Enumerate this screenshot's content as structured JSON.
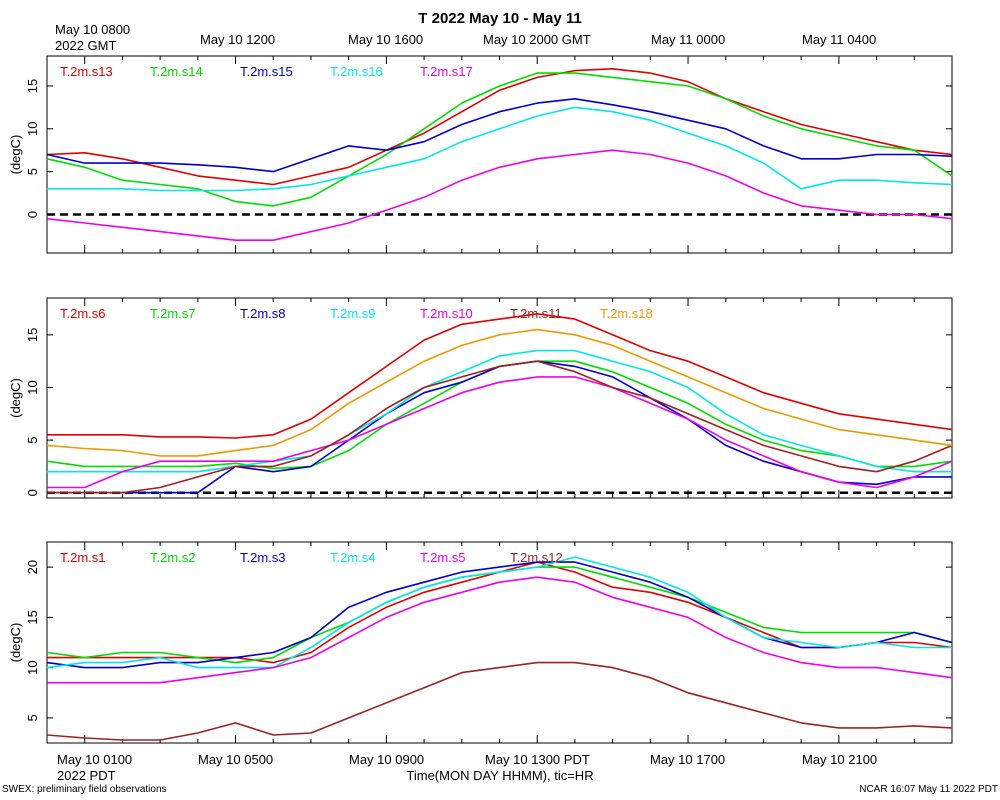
{
  "title": "T 2022 May 10 - May 11",
  "gmt_axis": {
    "first_label_line1": "May 10 0800",
    "first_label_line2": "2022 GMT",
    "labels": [
      "May 10 1200",
      "May 10 1600",
      "May 10 2000 GMT",
      "May 11 0000",
      "May 11 0400"
    ]
  },
  "pdt_axis": {
    "labels": [
      "May 10 0100",
      "May 10 0500",
      "May 10 0900",
      "May 10 1300 PDT",
      "May 10 1700",
      "May 10 2100"
    ],
    "year_label": "2022 PDT",
    "xlabel": "Time(MON DAY HHMM), tic=HR"
  },
  "footer": {
    "left": "SWEX: preliminary field observations",
    "right": "NCAR 16:07 May 11 2022 PDT"
  },
  "colors": {
    "red": "#e00000",
    "green": "#00dd00",
    "blue": "#0000cc",
    "cyan": "#00e8e8",
    "magenta": "#ee00ee",
    "brown": "#a02020",
    "orange": "#ee9900"
  },
  "chart_data": [
    {
      "type": "line",
      "ylabel": "(degC)",
      "ylim": [
        -4.5,
        18.5
      ],
      "yticks": [
        0,
        5,
        10,
        15
      ],
      "x_unit": "hours from May 10 0000 PDT",
      "xlim": [
        0,
        24
      ],
      "zero_line": true,
      "series": [
        {
          "name": "T.2m.s13",
          "color": "#e00000",
          "x": [
            0,
            1,
            2,
            3,
            4,
            5,
            6,
            7,
            8,
            9,
            10,
            11,
            12,
            13,
            14,
            15,
            16,
            17,
            18,
            19,
            20,
            21,
            22,
            23,
            24
          ],
          "values": [
            7,
            7.2,
            6.5,
            5.5,
            4.5,
            4,
            3.5,
            4.5,
            5.5,
            7.5,
            9.5,
            12,
            14.5,
            16,
            16.8,
            17,
            16.5,
            15.5,
            13.5,
            12,
            10.5,
            9.5,
            8.5,
            7.5,
            7
          ]
        },
        {
          "name": "T.2m.s14",
          "color": "#00dd00",
          "x": [
            0,
            1,
            2,
            3,
            4,
            5,
            6,
            7,
            8,
            9,
            10,
            11,
            12,
            13,
            14,
            15,
            16,
            17,
            18,
            19,
            20,
            21,
            22,
            23,
            24
          ],
          "values": [
            6.5,
            5.5,
            4,
            3.5,
            3,
            1.5,
            1,
            2,
            4.5,
            7,
            10,
            13,
            15,
            16.5,
            16.5,
            16,
            15.5,
            15,
            13.5,
            11.5,
            10,
            9,
            8,
            7.5,
            4.5
          ]
        },
        {
          "name": "T.2m.s15",
          "color": "#0000cc",
          "x": [
            0,
            1,
            2,
            3,
            4,
            5,
            6,
            7,
            8,
            9,
            10,
            11,
            12,
            13,
            14,
            15,
            16,
            17,
            18,
            19,
            20,
            21,
            22,
            23,
            24
          ],
          "values": [
            7,
            6,
            6,
            6,
            5.8,
            5.5,
            5,
            6.5,
            8,
            7.5,
            8.5,
            10.5,
            12,
            13,
            13.5,
            12.8,
            12,
            11,
            10,
            8,
            6.5,
            6.5,
            7,
            7,
            6.8
          ]
        },
        {
          "name": "T.2m.s16",
          "color": "#00e8e8",
          "x": [
            0,
            1,
            2,
            3,
            4,
            5,
            6,
            7,
            8,
            9,
            10,
            11,
            12,
            13,
            14,
            15,
            16,
            17,
            18,
            19,
            20,
            21,
            22,
            23,
            24
          ],
          "values": [
            3,
            3,
            3,
            2.8,
            2.8,
            2.8,
            3,
            3.5,
            4.5,
            5.5,
            6.5,
            8.5,
            10,
            11.5,
            12.5,
            12,
            11,
            9.5,
            8,
            6,
            3,
            4,
            4,
            3.7,
            3.5
          ]
        },
        {
          "name": "T.2m.s17",
          "color": "#ee00ee",
          "x": [
            0,
            1,
            2,
            3,
            4,
            5,
            6,
            7,
            8,
            9,
            10,
            11,
            12,
            13,
            14,
            15,
            16,
            17,
            18,
            19,
            20,
            21,
            22,
            23,
            24
          ],
          "values": [
            -0.5,
            -1,
            -1.5,
            -2,
            -2.5,
            -3,
            -3,
            -2,
            -1,
            0.5,
            2,
            4,
            5.5,
            6.5,
            7,
            7.5,
            7,
            6,
            4.5,
            2.5,
            1,
            0.5,
            0,
            0,
            -0.5
          ]
        }
      ]
    },
    {
      "type": "line",
      "ylabel": "(degC)",
      "ylim": [
        -0.5,
        18.5
      ],
      "yticks": [
        0,
        5,
        10,
        15
      ],
      "x_unit": "hours from May 10 0000 PDT",
      "xlim": [
        0,
        24
      ],
      "zero_line": true,
      "series": [
        {
          "name": "T.2m.s6",
          "color": "#e00000",
          "x": [
            0,
            1,
            2,
            3,
            4,
            5,
            6,
            7,
            8,
            9,
            10,
            11,
            12,
            13,
            14,
            15,
            16,
            17,
            18,
            19,
            20,
            21,
            22,
            23,
            24
          ],
          "values": [
            5.5,
            5.5,
            5.5,
            5.3,
            5.3,
            5.2,
            5.5,
            7,
            9.5,
            12,
            14.5,
            16,
            16.5,
            17,
            16.5,
            15,
            13.5,
            12.5,
            11,
            9.5,
            8.5,
            7.5,
            7,
            6.5,
            6
          ]
        },
        {
          "name": "T.2m.s7",
          "color": "#00dd00",
          "x": [
            0,
            1,
            2,
            3,
            4,
            5,
            6,
            7,
            8,
            9,
            10,
            11,
            12,
            13,
            14,
            15,
            16,
            17,
            18,
            19,
            20,
            21,
            22,
            23,
            24
          ],
          "values": [
            3,
            2.5,
            2.5,
            2.5,
            2.5,
            2.8,
            2.3,
            2.5,
            4,
            6.5,
            8.5,
            10.5,
            12,
            12.5,
            12.5,
            11.5,
            10,
            8.5,
            6.5,
            5,
            4,
            3.5,
            2.5,
            2.5,
            3
          ]
        },
        {
          "name": "T.2m.s8",
          "color": "#0000cc",
          "x": [
            0,
            1,
            2,
            3,
            4,
            5,
            6,
            7,
            8,
            9,
            10,
            11,
            12,
            13,
            14,
            15,
            16,
            17,
            18,
            19,
            20,
            21,
            22,
            23,
            24
          ],
          "values": [
            0,
            0,
            0,
            0,
            0,
            2.5,
            2,
            2.5,
            5,
            7.5,
            9.5,
            10.5,
            12,
            12.5,
            12,
            11,
            9,
            7,
            4.5,
            3,
            2,
            1,
            0.8,
            1.5,
            1.5
          ]
        },
        {
          "name": "T.2m.s9",
          "color": "#00e8e8",
          "x": [
            0,
            1,
            2,
            3,
            4,
            5,
            6,
            7,
            8,
            9,
            10,
            11,
            12,
            13,
            14,
            15,
            16,
            17,
            18,
            19,
            20,
            21,
            22,
            23,
            24
          ],
          "values": [
            2,
            2,
            2,
            2,
            2,
            2.5,
            3,
            3.5,
            5.5,
            7.5,
            10,
            11.5,
            13,
            13.5,
            13.5,
            12.5,
            11.5,
            10,
            7.5,
            5.5,
            4.5,
            3.5,
            2.5,
            2,
            2
          ]
        },
        {
          "name": "T.2m.s10",
          "color": "#ee00ee",
          "x": [
            0,
            1,
            2,
            3,
            4,
            5,
            6,
            7,
            8,
            9,
            10,
            11,
            12,
            13,
            14,
            15,
            16,
            17,
            18,
            19,
            20,
            21,
            22,
            23,
            24
          ],
          "values": [
            0.5,
            0.5,
            2,
            3,
            3,
            3,
            3,
            4,
            5,
            6.5,
            8,
            9.5,
            10.5,
            11,
            11,
            10,
            8.5,
            7,
            5,
            3.5,
            2,
            1,
            0.5,
            1.5,
            3
          ]
        },
        {
          "name": "T.2m.s11",
          "color": "#a02020",
          "x": [
            0,
            1,
            2,
            3,
            4,
            5,
            6,
            7,
            8,
            9,
            10,
            11,
            12,
            13,
            14,
            15,
            16,
            17,
            18,
            19,
            20,
            21,
            22,
            23,
            24
          ],
          "values": [
            0,
            0,
            0,
            0.5,
            1.5,
            2.5,
            2.5,
            3.5,
            5.5,
            8,
            10,
            11,
            12,
            12.5,
            11.5,
            10,
            9,
            7.5,
            6,
            4.5,
            3.5,
            2.5,
            2,
            3,
            4.5
          ]
        },
        {
          "name": "T.2m.s18",
          "color": "#ee9900",
          "x": [
            0,
            1,
            2,
            3,
            4,
            5,
            6,
            7,
            8,
            9,
            10,
            11,
            12,
            13,
            14,
            15,
            16,
            17,
            18,
            19,
            20,
            21,
            22,
            23,
            24
          ],
          "values": [
            4.5,
            4.2,
            4,
            3.5,
            3.5,
            4,
            4.5,
            6,
            8.5,
            10.5,
            12.5,
            14,
            15,
            15.5,
            15,
            14,
            12.5,
            11,
            9.5,
            8,
            7,
            6,
            5.5,
            5,
            4.5
          ]
        }
      ]
    },
    {
      "type": "line",
      "ylabel": "(degC)",
      "ylim": [
        2.5,
        22.5
      ],
      "yticks": [
        5,
        10,
        15,
        20
      ],
      "x_unit": "hours from May 10 0000 PDT",
      "xlim": [
        0,
        24
      ],
      "zero_line": false,
      "series": [
        {
          "name": "T.2m.s1",
          "color": "#e00000",
          "x": [
            0,
            1,
            2,
            3,
            4,
            5,
            6,
            7,
            8,
            9,
            10,
            11,
            12,
            13,
            14,
            15,
            16,
            17,
            18,
            19,
            20,
            21,
            22,
            23,
            24
          ],
          "values": [
            11,
            11,
            11,
            11,
            11,
            11,
            10.5,
            11.5,
            14,
            16,
            17.5,
            18.5,
            19.5,
            20.5,
            19.5,
            18,
            17.5,
            16.5,
            15,
            13.5,
            12,
            12,
            12.5,
            12.5,
            12
          ]
        },
        {
          "name": "T.2m.s2",
          "color": "#00dd00",
          "x": [
            0,
            1,
            2,
            3,
            4,
            5,
            6,
            7,
            8,
            9,
            10,
            11,
            12,
            13,
            14,
            15,
            16,
            17,
            18,
            19,
            20,
            21,
            22,
            23,
            24
          ],
          "values": [
            11.5,
            11,
            11.5,
            11.5,
            11,
            10.5,
            11,
            13,
            14.5,
            16.5,
            18,
            19,
            19.5,
            20,
            20,
            19,
            18,
            17,
            15.5,
            14,
            13.5,
            13.5,
            13.5,
            13.5,
            12.5
          ]
        },
        {
          "name": "T.2m.s3",
          "color": "#0000cc",
          "x": [
            0,
            1,
            2,
            3,
            4,
            5,
            6,
            7,
            8,
            9,
            10,
            11,
            12,
            13,
            14,
            15,
            16,
            17,
            18,
            19,
            20,
            21,
            22,
            23,
            24
          ],
          "values": [
            10.5,
            10,
            10,
            10.5,
            10.5,
            11,
            11.5,
            13,
            16,
            17.5,
            18.5,
            19.5,
            20,
            20.5,
            20.5,
            19.5,
            18.5,
            17,
            15,
            13,
            12,
            12,
            12.5,
            13.5,
            12.5
          ]
        },
        {
          "name": "T.2m.s4",
          "color": "#00e8e8",
          "x": [
            0,
            1,
            2,
            3,
            4,
            5,
            6,
            7,
            8,
            9,
            10,
            11,
            12,
            13,
            14,
            15,
            16,
            17,
            18,
            19,
            20,
            21,
            22,
            23,
            24
          ],
          "values": [
            10,
            10.5,
            10.5,
            11,
            10,
            10,
            10,
            12,
            14.5,
            16.5,
            18,
            19,
            19.5,
            20,
            21,
            20,
            19,
            17.5,
            15,
            13,
            12.5,
            12,
            12.5,
            12,
            12
          ]
        },
        {
          "name": "T.2m.s5",
          "color": "#ee00ee",
          "x": [
            0,
            1,
            2,
            3,
            4,
            5,
            6,
            7,
            8,
            9,
            10,
            11,
            12,
            13,
            14,
            15,
            16,
            17,
            18,
            19,
            20,
            21,
            22,
            23,
            24
          ],
          "values": [
            8.5,
            8.5,
            8.5,
            8.5,
            9,
            9.5,
            10,
            11,
            13,
            15,
            16.5,
            17.5,
            18.5,
            19,
            18.5,
            17,
            16,
            15,
            13,
            11.5,
            10.5,
            10,
            10,
            9.5,
            9
          ]
        },
        {
          "name": "T.2m.s12",
          "color": "#a02020",
          "x": [
            0,
            1,
            2,
            3,
            4,
            5,
            6,
            7,
            8,
            9,
            10,
            11,
            12,
            13,
            14,
            15,
            16,
            17,
            18,
            19,
            20,
            21,
            22,
            23,
            24
          ],
          "values": [
            3.3,
            3,
            2.8,
            2.8,
            3.5,
            4.5,
            3.3,
            3.5,
            5,
            6.5,
            8,
            9.5,
            10,
            10.5,
            10.5,
            10,
            9,
            7.5,
            6.5,
            5.5,
            4.5,
            4,
            4,
            4.2,
            4
          ]
        }
      ]
    }
  ]
}
